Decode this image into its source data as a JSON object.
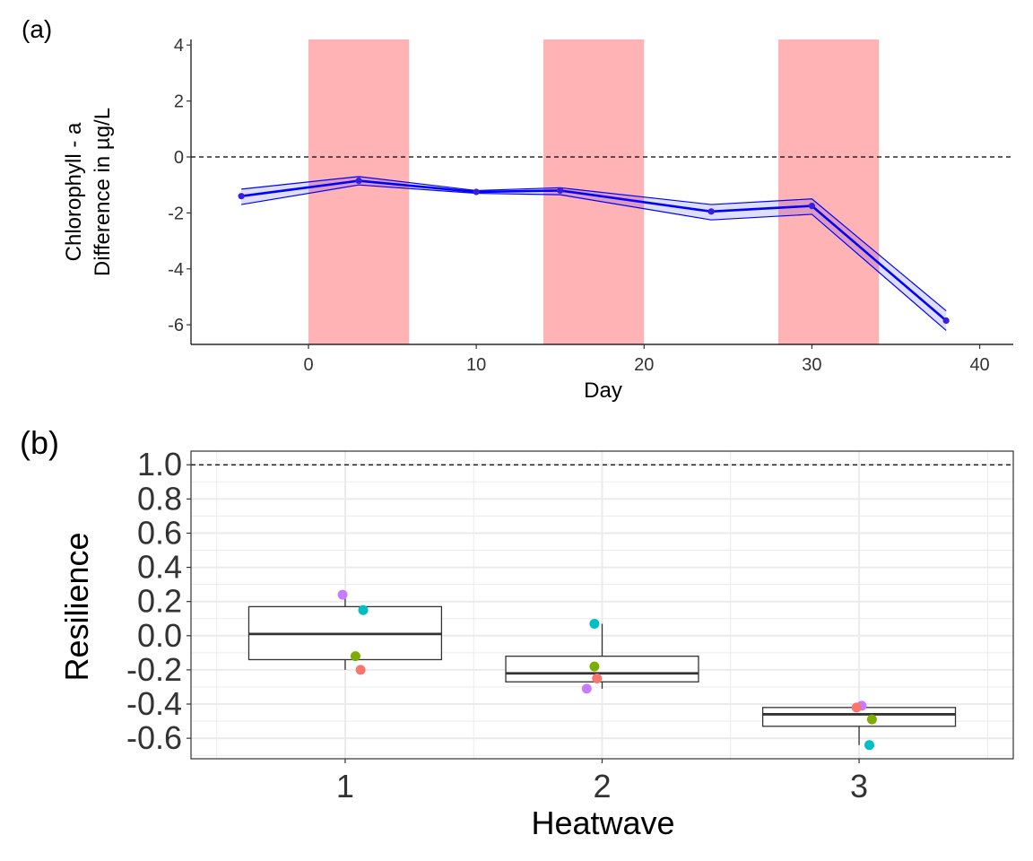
{
  "panel_labels": {
    "a": "(a)",
    "b": "(b)"
  },
  "chart_data": [
    {
      "type": "line",
      "panel": "(a)",
      "xlabel": "Day",
      "ylabel_line1": "Chlorophyll - a",
      "ylabel_line2": "Difference in µg/L",
      "xlim": [
        -7,
        42
      ],
      "ylim": [
        -6.7,
        4.2
      ],
      "xticks": [
        0,
        10,
        20,
        30,
        40
      ],
      "yticks": [
        4,
        2,
        0,
        -2,
        -4,
        -6
      ],
      "reference_line": {
        "y": 0,
        "style": "dashed"
      },
      "grid": false,
      "heatwave_periods": [
        [
          0,
          6
        ],
        [
          14,
          20
        ],
        [
          28,
          34
        ]
      ],
      "heatwave_color": "#ffb3b5",
      "line_color": "#0000ff",
      "point_color": "#3a1ee0",
      "series": [
        {
          "x": [
            -4,
            3,
            10,
            15,
            24,
            30,
            38
          ],
          "y": [
            -1.4,
            -0.85,
            -1.25,
            -1.2,
            -1.95,
            -1.75,
            -5.85
          ],
          "lower": [
            -1.7,
            -1.0,
            -1.3,
            -1.35,
            -2.25,
            -2.05,
            -6.2
          ],
          "upper": [
            -1.15,
            -0.7,
            -1.2,
            -1.1,
            -1.7,
            -1.5,
            -5.5
          ]
        }
      ]
    },
    {
      "type": "box",
      "panel": "(b)",
      "xlabel": "Heatwave",
      "ylabel": "Resilience",
      "categories": [
        "1",
        "2",
        "3"
      ],
      "ylim": [
        -0.72,
        1.08
      ],
      "yticks": [
        "1.0",
        "0.8",
        "0.6",
        "0.4",
        "0.2",
        "0.0",
        "-0.2",
        "-0.4",
        "-0.6"
      ],
      "ytick_values": [
        1.0,
        0.8,
        0.6,
        0.4,
        0.2,
        0.0,
        -0.2,
        -0.4,
        -0.6
      ],
      "reference_line": {
        "y": 1.0,
        "style": "dashed"
      },
      "grid": true,
      "boxes": [
        {
          "category": "1",
          "q1": -0.14,
          "median": 0.01,
          "q3": 0.17,
          "whisker_low": -0.2,
          "whisker_high": 0.24
        },
        {
          "category": "2",
          "q1": -0.27,
          "median": -0.22,
          "q3": -0.12,
          "whisker_low": -0.31,
          "whisker_high": 0.07
        },
        {
          "category": "3",
          "q1": -0.53,
          "median": -0.46,
          "q3": -0.42,
          "whisker_low": -0.64,
          "whisker_high": -0.41
        }
      ],
      "points": [
        {
          "category": "1",
          "dx": -0.01,
          "y": 0.24,
          "color": "#c77cff"
        },
        {
          "category": "1",
          "dx": 0.07,
          "y": 0.15,
          "color": "#00bfc4"
        },
        {
          "category": "1",
          "dx": 0.04,
          "y": -0.12,
          "color": "#7cae00"
        },
        {
          "category": "1",
          "dx": 0.06,
          "y": -0.2,
          "color": "#f8766d"
        },
        {
          "category": "2",
          "dx": -0.03,
          "y": 0.07,
          "color": "#00bfc4"
        },
        {
          "category": "2",
          "dx": -0.03,
          "y": -0.18,
          "color": "#7cae00"
        },
        {
          "category": "2",
          "dx": -0.02,
          "y": -0.25,
          "color": "#f8766d"
        },
        {
          "category": "2",
          "dx": -0.06,
          "y": -0.31,
          "color": "#c77cff"
        },
        {
          "category": "3",
          "dx": 0.01,
          "y": -0.41,
          "color": "#c77cff"
        },
        {
          "category": "3",
          "dx": -0.01,
          "y": -0.42,
          "color": "#f8766d"
        },
        {
          "category": "3",
          "dx": 0.05,
          "y": -0.49,
          "color": "#7cae00"
        },
        {
          "category": "3",
          "dx": 0.04,
          "y": -0.64,
          "color": "#00bfc4"
        }
      ]
    }
  ]
}
